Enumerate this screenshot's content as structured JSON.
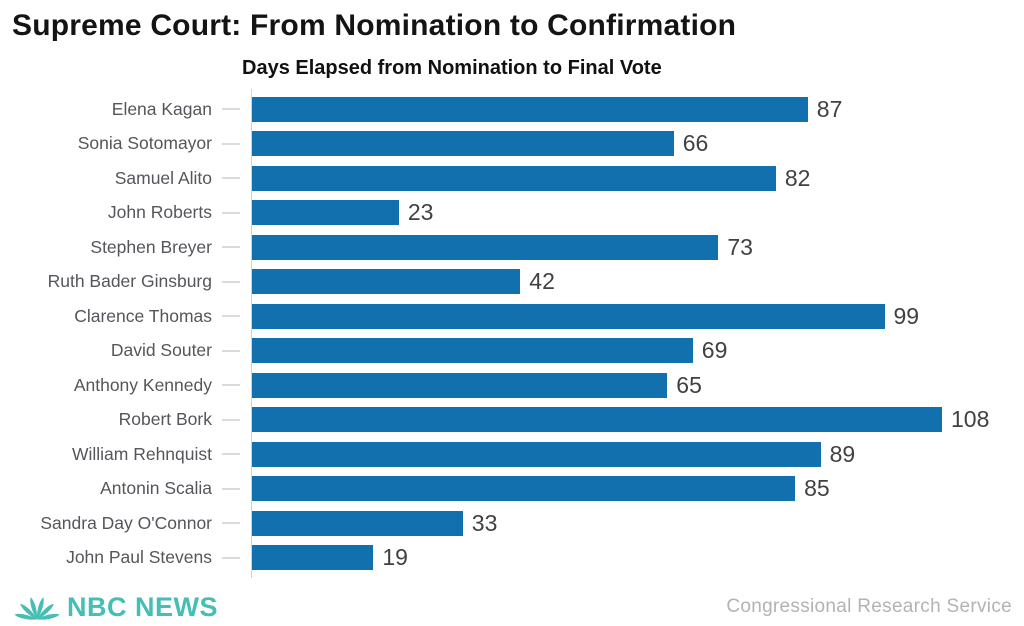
{
  "header": {
    "title": "Supreme Court: From Nomination to Confirmation"
  },
  "chart_data": {
    "type": "bar",
    "orientation": "horizontal",
    "title": "Days Elapsed from Nomination to Final Vote",
    "categories": [
      "Elena Kagan",
      "Sonia Sotomayor",
      "Samuel Alito",
      "John Roberts",
      "Stephen Breyer",
      "Ruth Bader Ginsburg",
      "Clarence Thomas",
      "David Souter",
      "Anthony Kennedy",
      "Robert Bork",
      "William Rehnquist",
      "Antonin Scalia",
      "Sandra Day O'Connor",
      "John Paul Stevens"
    ],
    "values": [
      87,
      66,
      82,
      23,
      73,
      42,
      99,
      69,
      65,
      108,
      89,
      85,
      33,
      19
    ],
    "unit": "days",
    "xlim": [
      0,
      120
    ],
    "grid": false,
    "legend": "none",
    "value_labels_position": "right-of-bar",
    "colors": {
      "bar": "#1270AF",
      "category_label": "#54565B",
      "value_label": "#414141",
      "axis": "#d2d2d2"
    }
  },
  "footer": {
    "brand": "NBC NEWS",
    "brand_color": "#45BEB3",
    "source": "Congressional Research Service",
    "source_color": "#b3b3b5"
  }
}
